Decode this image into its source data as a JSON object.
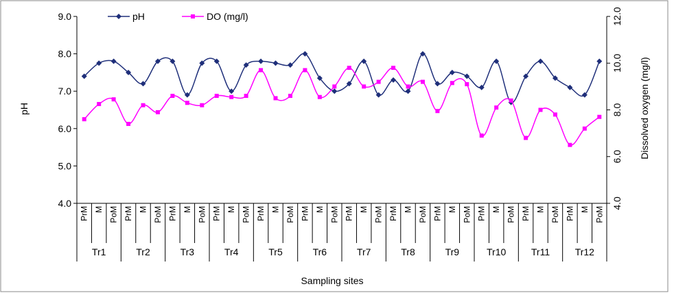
{
  "chart_data": {
    "type": "line",
    "xlabel": "Sampling sites",
    "ylabel_left": "pH",
    "ylabel_right": "Dissolved oxygen (mg/l)",
    "ylim_left": [
      4.0,
      9.0
    ],
    "ylim_right": [
      4.0,
      12.0
    ],
    "yticks_left": [
      "4.0",
      "5.0",
      "6.0",
      "7.0",
      "8.0",
      "9.0"
    ],
    "yticks_right": [
      "4.0",
      "6.0",
      "8.0",
      "10.0",
      "12.0"
    ],
    "grid": false,
    "legend_position": "top-left",
    "subcategories": [
      "PrM",
      "M",
      "PoM"
    ],
    "groups": [
      "Tr1",
      "Tr2",
      "Tr3",
      "Tr4",
      "Tr5",
      "Tr6",
      "Tr7",
      "Tr8",
      "Tr9",
      "Tr10",
      "Tr11",
      "Tr12"
    ],
    "series": [
      {
        "name": "pH",
        "axis": "left",
        "color": "#1F2F7A",
        "marker": "diamond",
        "values": [
          7.4,
          7.75,
          7.8,
          7.5,
          7.2,
          7.8,
          7.8,
          6.9,
          7.75,
          7.8,
          7.0,
          7.7,
          7.8,
          7.75,
          7.7,
          8.0,
          7.35,
          7.0,
          7.2,
          7.8,
          6.9,
          7.3,
          7.0,
          8.0,
          7.2,
          7.5,
          7.4,
          7.1,
          7.8,
          6.7,
          7.4,
          7.8,
          7.35,
          7.1,
          6.9,
          7.8
        ]
      },
      {
        "name": "DO (mg/l)",
        "axis": "right",
        "color": "#FF00FF",
        "marker": "square",
        "values": [
          7.6,
          8.25,
          8.45,
          7.4,
          8.2,
          7.9,
          8.6,
          8.3,
          8.2,
          8.6,
          8.55,
          8.6,
          9.7,
          8.5,
          8.6,
          9.7,
          8.55,
          9.0,
          9.8,
          9.0,
          9.2,
          9.8,
          9.0,
          9.2,
          7.95,
          9.15,
          9.1,
          6.9,
          8.1,
          8.4,
          6.8,
          8.0,
          7.8,
          6.5,
          7.2,
          7.7
        ]
      }
    ]
  }
}
